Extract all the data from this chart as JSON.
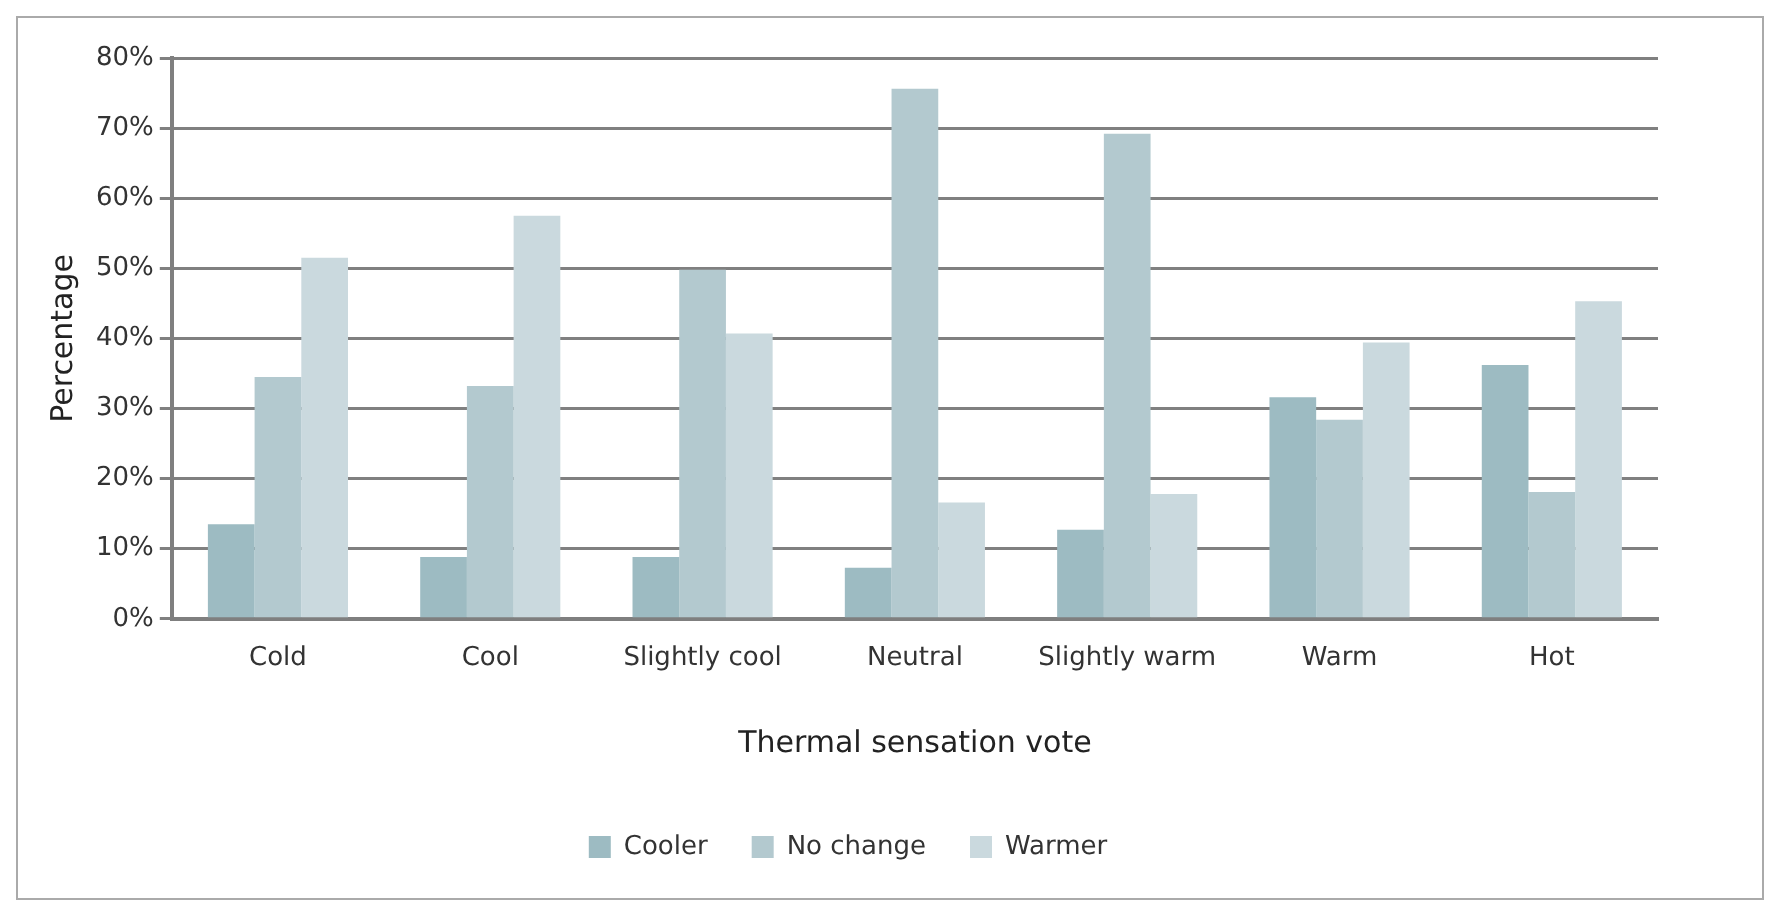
{
  "chart_data": {
    "type": "bar",
    "xlabel": "Thermal sensation vote",
    "ylabel": "Percentage",
    "categories": [
      "Cold",
      "Cool",
      "Slightly cool",
      "Neutral",
      "Slightly warm",
      "Warm",
      "Hot"
    ],
    "series": [
      {
        "name": "Cooler",
        "color": "#9dbbc2",
        "values": [
          13.5,
          8.8,
          8.8,
          7.3,
          12.7,
          31.6,
          36.2
        ]
      },
      {
        "name": "No change",
        "color": "#b3c9cf",
        "values": [
          34.5,
          33.2,
          49.8,
          75.6,
          69.2,
          28.4,
          18.1
        ]
      },
      {
        "name": "Warmer",
        "color": "#cad9de",
        "values": [
          51.5,
          57.5,
          40.7,
          16.6,
          17.8,
          39.4,
          45.3
        ]
      }
    ],
    "ylim": [
      0,
      80
    ],
    "yticks": [
      {
        "value": 0,
        "label": "0%"
      },
      {
        "value": 10,
        "label": "10%"
      },
      {
        "value": 20,
        "label": "20%"
      },
      {
        "value": 30,
        "label": "30%"
      },
      {
        "value": 40,
        "label": "40%"
      },
      {
        "value": 50,
        "label": "50%"
      },
      {
        "value": 60,
        "label": "60%"
      },
      {
        "value": 70,
        "label": "70%"
      },
      {
        "value": 80,
        "label": "80%"
      }
    ],
    "grid": "y",
    "legend": "bottom"
  }
}
